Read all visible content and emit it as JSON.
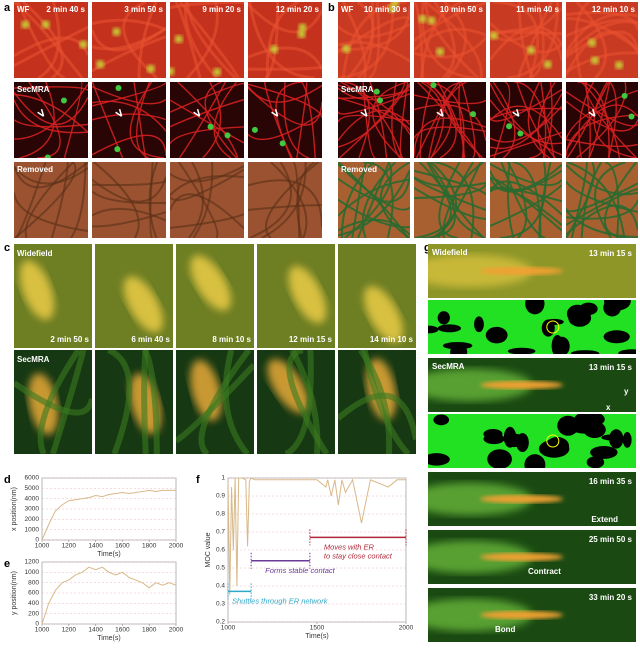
{
  "panel_a": {
    "label": "a",
    "row_labels": [
      "WF",
      "SecMRA",
      "Removed"
    ],
    "times": [
      "2 min 40 s",
      "3 min 50 s",
      "9 min 20 s",
      "12 min 20 s"
    ]
  },
  "panel_b": {
    "label": "b",
    "row_labels": [
      "WF",
      "SecMRA",
      "Removed"
    ],
    "times": [
      "10 min 30 s",
      "10 min 50 s",
      "11 min 40 s",
      "12 min 10 s"
    ]
  },
  "panel_c": {
    "label": "c",
    "row_labels": [
      "Widefield",
      "SecMRA"
    ],
    "times": [
      "2 min 50 s",
      "6 min 40 s",
      "8 min 10 s",
      "12 min 15 s",
      "14 min 10 s"
    ]
  },
  "panel_g": {
    "label": "g",
    "row_labels": [
      "Widefield",
      "SecMRA"
    ],
    "times": [
      "13 min 15 s",
      "13 min 15 s",
      "16 min 35 s",
      "25 min 50 s",
      "33 min 20 s"
    ],
    "annotations": [
      "Extend",
      "Contract",
      "Bond"
    ],
    "axes": [
      "y",
      "x"
    ]
  },
  "chart_data": [
    {
      "type": "line",
      "label": "d",
      "xlabel": "Time(s)",
      "ylabel": "x position(nm)",
      "color": "#d8b888",
      "grid": true,
      "x": [
        1000,
        1050,
        1100,
        1150,
        1200,
        1250,
        1300,
        1350,
        1400,
        1450,
        1500,
        1550,
        1600,
        1650,
        1700,
        1750,
        1800,
        1850,
        1900,
        1950,
        2000
      ],
      "values": [
        0,
        1500,
        2800,
        3400,
        3800,
        3900,
        4000,
        4100,
        4300,
        4200,
        4400,
        4500,
        4600,
        4500,
        4600,
        4700,
        4800,
        4700,
        4800,
        4800,
        4800
      ],
      "xlim": [
        1000,
        2000
      ],
      "xticks": [
        1000,
        1200,
        1400,
        1600,
        1800,
        2000
      ],
      "ylim": [
        0,
        6000
      ],
      "yticks": [
        0,
        1000,
        2000,
        3000,
        4000,
        5000,
        6000
      ]
    },
    {
      "type": "line",
      "label": "e",
      "xlabel": "Time(s)",
      "ylabel": "y position(nm)",
      "color": "#d8b888",
      "grid": true,
      "x": [
        1000,
        1050,
        1100,
        1150,
        1200,
        1250,
        1300,
        1350,
        1400,
        1450,
        1500,
        1550,
        1600,
        1650,
        1700,
        1750,
        1800,
        1850,
        1900,
        1950,
        2000
      ],
      "values": [
        0,
        400,
        650,
        800,
        850,
        950,
        1000,
        1100,
        1050,
        1100,
        1000,
        950,
        1000,
        900,
        850,
        800,
        700,
        800,
        750,
        800,
        750
      ],
      "xlim": [
        1000,
        2000
      ],
      "xticks": [
        1000,
        1200,
        1400,
        1600,
        1800,
        2000
      ],
      "ylim": [
        0,
        1200
      ],
      "yticks": [
        0,
        200,
        400,
        600,
        800,
        1000,
        1200
      ]
    },
    {
      "type": "line",
      "label": "f",
      "xlabel": "Time(s)",
      "ylabel": "MOC value",
      "color": "#d8b888",
      "grid": true,
      "x": [
        1000,
        1010,
        1020,
        1030,
        1040,
        1050,
        1060,
        1080,
        1100,
        1110,
        1120,
        1130,
        1150,
        1200,
        1300,
        1400,
        1500,
        1550,
        1560,
        1580,
        1600,
        1620,
        1640,
        1660,
        1700,
        1750,
        1800,
        1850,
        1900,
        1950,
        2000
      ],
      "values": [
        0.98,
        0.35,
        0.95,
        0.6,
        1,
        0.4,
        1,
        1,
        0.99,
        0.62,
        0.98,
        1,
        0.99,
        0.99,
        0.99,
        0.99,
        0.99,
        0.95,
        0.99,
        0.9,
        0.99,
        0.85,
        0.99,
        0.92,
        0.99,
        0.75,
        0.99,
        0.97,
        0.95,
        0.99,
        0.99
      ],
      "xlim": [
        1000,
        2000
      ],
      "xticks": [
        1000,
        1500,
        2000
      ],
      "ylim": [
        0.2,
        1
      ],
      "yticks": [
        0.2,
        0.3,
        0.4,
        0.5,
        0.6,
        0.7,
        0.8,
        0.9,
        1
      ],
      "annotations": [
        {
          "lines": [
            "Shuttles through ER network"
          ],
          "x": [
            1000,
            1130
          ],
          "y": 0.37,
          "color": "#30a8c8"
        },
        {
          "lines": [
            "Forms stable contact"
          ],
          "x": [
            1130,
            1460
          ],
          "y": 0.54,
          "color": "#6a3a98"
        },
        {
          "lines": [
            "Moves with ER",
            "to stay close contact"
          ],
          "x": [
            1460,
            2000
          ],
          "y": 0.67,
          "color": "#b02838"
        }
      ]
    }
  ]
}
